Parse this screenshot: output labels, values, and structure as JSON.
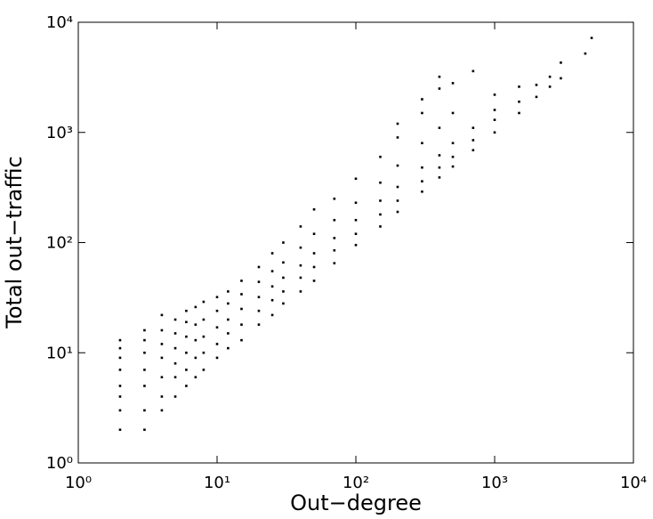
{
  "chart_data": {
    "type": "scatter",
    "xlabel": "Out−degree",
    "ylabel": "Total out−traffic",
    "xscale": "log",
    "yscale": "log",
    "color": "#000000",
    "xlim": [
      1,
      10000
    ],
    "ylim": [
      1,
      10000
    ],
    "xticks": [
      {
        "value": 1,
        "label": "10⁰"
      },
      {
        "value": 10,
        "label": "10¹"
      },
      {
        "value": 100,
        "label": "10²"
      },
      {
        "value": 1000,
        "label": "10³"
      },
      {
        "value": 10000,
        "label": "10⁴"
      }
    ],
    "yticks": [
      {
        "value": 1,
        "label": "10⁰"
      },
      {
        "value": 10,
        "label": "10¹"
      },
      {
        "value": 100,
        "label": "10²"
      },
      {
        "value": 1000,
        "label": "10³"
      },
      {
        "value": 10000,
        "label": "10⁴"
      }
    ],
    "x": [
      2,
      2,
      2,
      2,
      2,
      2,
      2,
      2,
      3,
      3,
      3,
      3,
      3,
      3,
      3,
      4,
      4,
      4,
      4,
      4,
      4,
      4,
      5,
      5,
      5,
      5,
      5,
      5,
      6,
      6,
      6,
      6,
      6,
      6,
      7,
      7,
      7,
      7,
      7,
      8,
      8,
      8,
      8,
      8,
      10,
      10,
      10,
      10,
      10,
      12,
      12,
      12,
      12,
      12,
      15,
      15,
      15,
      15,
      15,
      20,
      20,
      20,
      20,
      20,
      25,
      25,
      25,
      25,
      25,
      30,
      30,
      30,
      30,
      30,
      40,
      40,
      40,
      40,
      40,
      50,
      50,
      50,
      50,
      50,
      70,
      70,
      70,
      70,
      70,
      100,
      100,
      100,
      100,
      100,
      150,
      150,
      150,
      150,
      150,
      200,
      200,
      200,
      200,
      200,
      200,
      300,
      300,
      300,
      300,
      300,
      300,
      400,
      400,
      400,
      400,
      400,
      400,
      500,
      500,
      500,
      500,
      500,
      700,
      700,
      700,
      700,
      1000,
      1000,
      1000,
      1000,
      1500,
      1500,
      1500,
      2000,
      2000,
      2500,
      2500,
      3000,
      3000,
      4500,
      5000
    ],
    "values": [
      2,
      3,
      4,
      5,
      7,
      9,
      11,
      13,
      2,
      3,
      5,
      7,
      10,
      13,
      16,
      3,
      4,
      6,
      9,
      12,
      16,
      22,
      4,
      6,
      8,
      11,
      15,
      20,
      5,
      7,
      10,
      14,
      19,
      24,
      6,
      9,
      13,
      18,
      26,
      7,
      10,
      14,
      20,
      29,
      9,
      12,
      17,
      24,
      32,
      11,
      15,
      20,
      28,
      36,
      13,
      18,
      25,
      34,
      45,
      18,
      24,
      32,
      44,
      60,
      22,
      30,
      40,
      55,
      80,
      28,
      36,
      48,
      66,
      100,
      36,
      48,
      62,
      90,
      140,
      45,
      60,
      80,
      120,
      200,
      65,
      85,
      110,
      160,
      250,
      95,
      120,
      160,
      230,
      380,
      140,
      180,
      240,
      350,
      600,
      190,
      240,
      320,
      500,
      900,
      1200,
      290,
      360,
      480,
      800,
      1500,
      2000,
      390,
      480,
      620,
      1100,
      2500,
      3200,
      490,
      600,
      800,
      1500,
      2800,
      690,
      850,
      1100,
      3600,
      1000,
      1300,
      1600,
      2200,
      1500,
      1900,
      2600,
      2100,
      2700,
      2600,
      3200,
      3100,
      4300,
      5200,
      7200
    ]
  }
}
